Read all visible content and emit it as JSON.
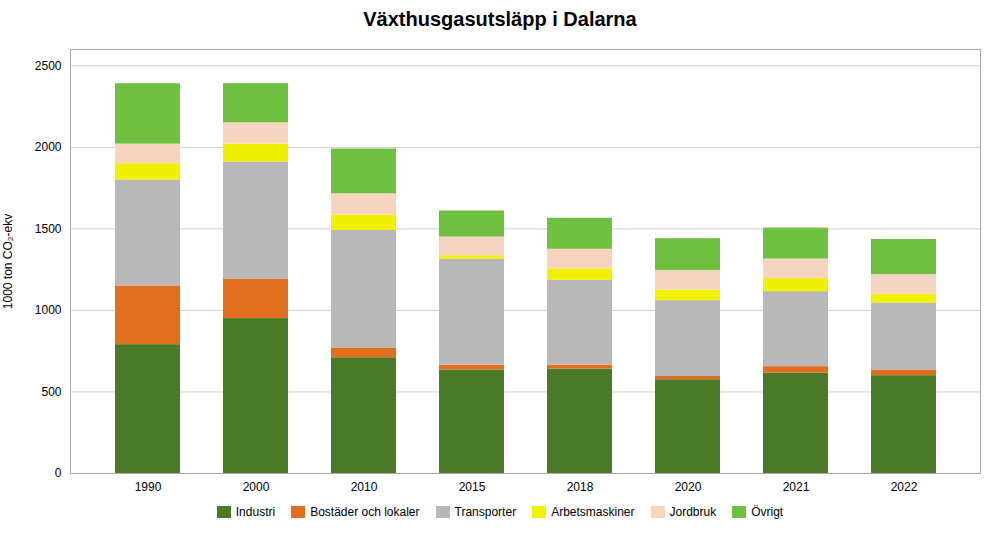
{
  "chart_data": {
    "type": "bar",
    "stacked": true,
    "title": "Växthusgasutsläpp i Dalarna",
    "ylabel": "1000 ton CO₂-ekv",
    "categories": [
      "1990",
      "2000",
      "2010",
      "2015",
      "2018",
      "2020",
      "2021",
      "2022"
    ],
    "series": [
      {
        "name": "Industri",
        "color": "#4a7a28",
        "values": [
          790,
          950,
          710,
          635,
          640,
          575,
          615,
          600
        ]
      },
      {
        "name": "Bostäder och lokaler",
        "color": "#e07020",
        "values": [
          360,
          240,
          60,
          30,
          25,
          20,
          40,
          35
        ]
      },
      {
        "name": "Transporter",
        "color": "#b8b8b8",
        "values": [
          650,
          720,
          720,
          650,
          520,
          465,
          460,
          410
        ]
      },
      {
        "name": "Arbetsmaskiner",
        "color": "#f0f000",
        "values": [
          100,
          110,
          95,
          20,
          70,
          65,
          80,
          55
        ]
      },
      {
        "name": "Jordbruk",
        "color": "#f5d5c0",
        "values": [
          120,
          130,
          130,
          115,
          120,
          120,
          120,
          120
        ]
      },
      {
        "name": "Övrigt",
        "color": "#6fc040",
        "values": [
          370,
          240,
          275,
          160,
          190,
          195,
          190,
          215
        ]
      }
    ],
    "ylim": [
      0,
      2600
    ],
    "yticks": [
      0,
      500,
      1000,
      1500,
      2000,
      2500
    ],
    "grid": true,
    "legend": "bottom"
  }
}
